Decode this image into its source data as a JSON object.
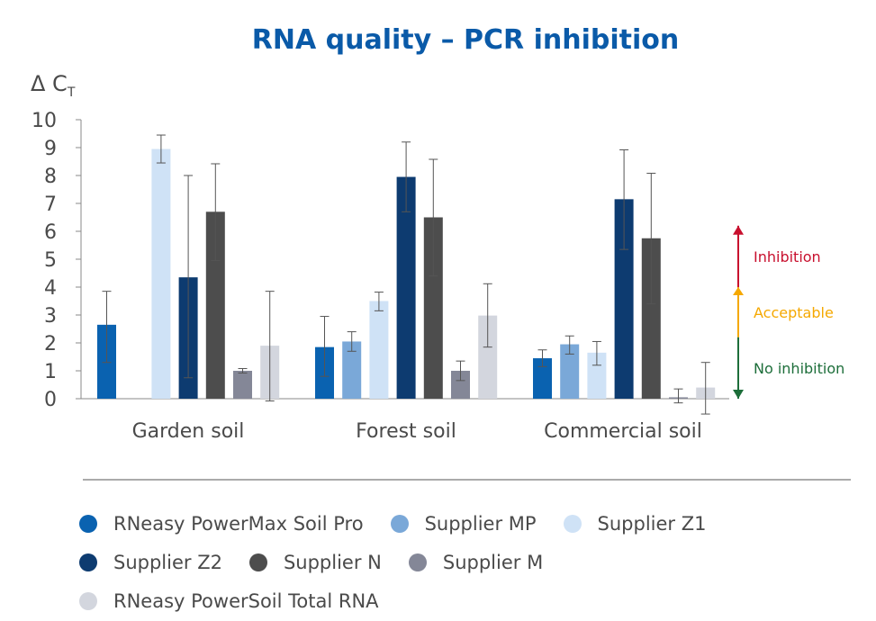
{
  "chart_data": {
    "type": "bar",
    "title": "RNA quality – PCR inhibition",
    "ylabel": "Δ C",
    "ylabel_sub": "T",
    "ylim": [
      0,
      10
    ],
    "yticks": [
      "0",
      "1",
      "2",
      "3",
      "4",
      "5",
      "6",
      "7",
      "8",
      "9",
      "10"
    ],
    "categories": [
      "Garden soil",
      "Forest soil",
      "Commercial soil"
    ],
    "series": [
      {
        "name": "RNeasy PowerMax Soil Pro",
        "color": "#0a62b0",
        "values": [
          2.65,
          1.85,
          1.45
        ],
        "err_low": [
          1.3,
          0.8,
          1.15
        ],
        "err_high": [
          3.85,
          2.95,
          1.75
        ]
      },
      {
        "name": "Supplier MP",
        "color": "#7aa8d8",
        "values": [
          0,
          2.05,
          1.95
        ],
        "err_low": [
          0,
          1.7,
          1.6
        ],
        "err_high": [
          0,
          2.4,
          2.25
        ]
      },
      {
        "name": "Supplier Z1",
        "color": "#cfe2f6",
        "values": [
          8.95,
          3.5,
          1.65
        ],
        "err_low": [
          8.45,
          3.15,
          1.2
        ],
        "err_high": [
          9.45,
          3.82,
          2.05
        ]
      },
      {
        "name": "Supplier Z2",
        "color": "#0d3b70",
        "values": [
          4.35,
          7.95,
          7.15
        ],
        "err_low": [
          0.75,
          6.7,
          5.35
        ],
        "err_high": [
          8.0,
          9.2,
          8.92
        ]
      },
      {
        "name": "Supplier N",
        "color": "#4d4d4d",
        "values": [
          6.7,
          6.5,
          5.75
        ],
        "err_low": [
          4.95,
          4.4,
          3.4
        ],
        "err_high": [
          8.42,
          8.58,
          8.08
        ]
      },
      {
        "name": "Supplier M",
        "color": "#848797",
        "values": [
          1.0,
          1.0,
          0.05
        ],
        "err_low": [
          0.92,
          0.65,
          -0.15
        ],
        "err_high": [
          1.08,
          1.35,
          0.35
        ]
      },
      {
        "name": "RNeasy PowerSoil Total RNA",
        "color": "#d3d6de",
        "values": [
          1.9,
          2.98,
          0.4
        ],
        "err_low": [
          -0.08,
          1.85,
          -0.55
        ],
        "err_high": [
          3.85,
          4.12,
          1.3
        ]
      }
    ],
    "legend_rows": [
      [
        0,
        1,
        2
      ],
      [
        3,
        4,
        5
      ],
      [
        6
      ]
    ],
    "annotations": [
      {
        "label": "Inhibition",
        "from": 4,
        "to": 6.2,
        "color": "#c8102e"
      },
      {
        "label": "Acceptable",
        "from": 2.2,
        "to": 4,
        "color": "#f5a800"
      },
      {
        "label": "No inhibition",
        "from": 0,
        "to": 2.2,
        "color": "#1d6e3a"
      }
    ]
  }
}
